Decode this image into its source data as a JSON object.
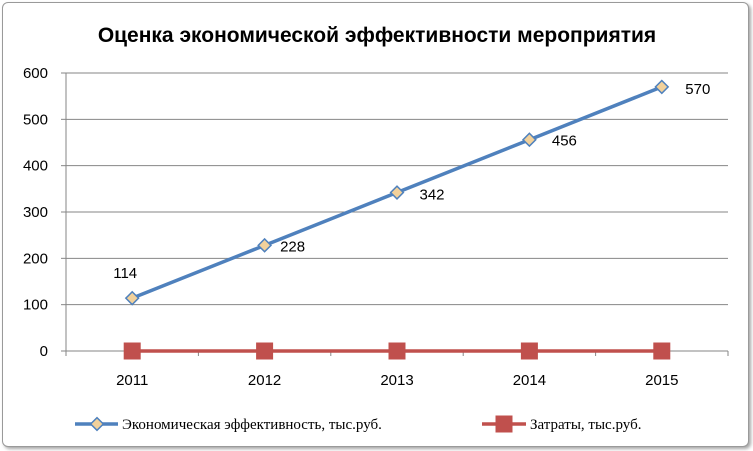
{
  "chart_data": {
    "type": "line",
    "title": "Оценка экономической эффективности мероприятия",
    "categories": [
      "2011",
      "2012",
      "2013",
      "2014",
      "2015"
    ],
    "ylim": [
      0,
      600
    ],
    "yticks": [
      "0",
      "100",
      "200",
      "300",
      "400",
      "500",
      "600"
    ],
    "grid": "horizontal",
    "legend_position": "bottom",
    "series": [
      {
        "name": "Экономическая эффективность, тыс.руб.",
        "values": [
          114,
          228,
          342,
          456,
          570
        ],
        "data_labels": [
          "114",
          "228",
          "342",
          "456",
          "570"
        ],
        "color": "#4f81bd",
        "marker": "diamond",
        "marker_fill": "#f2d19b"
      },
      {
        "name": "Затраты, тыс.руб.",
        "values": [
          0,
          0,
          0,
          0,
          0
        ],
        "color": "#c0504d",
        "marker": "square"
      }
    ]
  }
}
